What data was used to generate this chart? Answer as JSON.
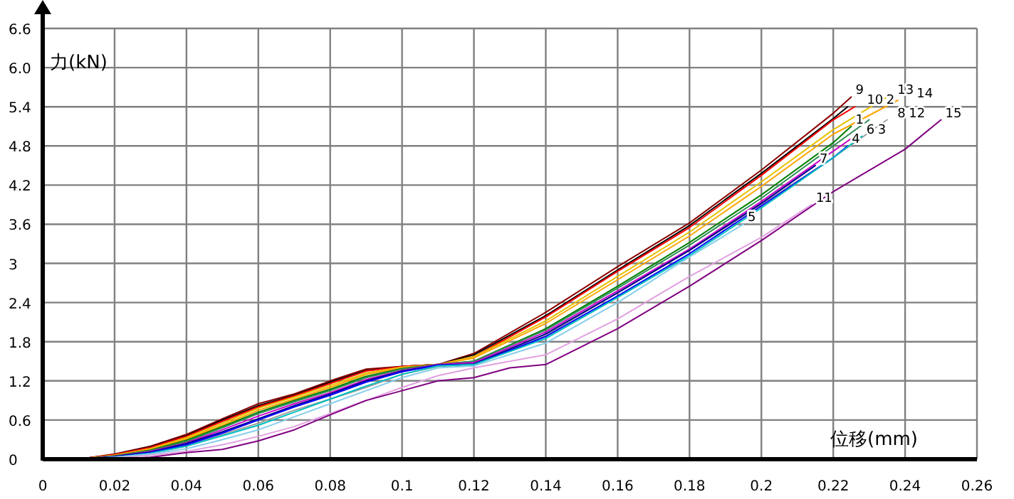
{
  "chart_data": {
    "type": "line",
    "xlabel": "位移(mm)",
    "ylabel": "力(kN)",
    "xlim": [
      0,
      0.26
    ],
    "ylim": [
      0,
      6.6
    ],
    "xticks": [
      0,
      0.02,
      0.04,
      0.06,
      0.08,
      0.1,
      0.12,
      0.14,
      0.16,
      0.18,
      0.2,
      0.22,
      0.24,
      0.26
    ],
    "yticks": [
      0,
      0.6,
      1.2,
      1.8,
      2.4,
      3,
      3.6,
      4.2,
      4.8,
      5.4,
      {
        "value": 6,
        "label": "6.0"
      },
      6.6
    ],
    "grid": true,
    "legend": false,
    "marker": "none",
    "line_style": "solid",
    "series": [
      {
        "name": "9",
        "color": "#8b0000",
        "x": [
          0.01,
          0.02,
          0.03,
          0.04,
          0.05,
          0.06,
          0.07,
          0.08,
          0.09,
          0.1,
          0.11,
          0.12,
          0.14,
          0.16,
          0.18,
          0.2,
          0.22,
          0.225
        ],
        "values": [
          0,
          0.08,
          0.2,
          0.38,
          0.62,
          0.85,
          1.0,
          1.2,
          1.38,
          1.42,
          1.45,
          1.62,
          2.25,
          2.95,
          3.62,
          4.43,
          5.3,
          5.55
        ]
      },
      {
        "name": "10",
        "color": "#000000",
        "x": [
          0.01,
          0.02,
          0.03,
          0.04,
          0.05,
          0.06,
          0.07,
          0.08,
          0.09,
          0.1,
          0.11,
          0.12,
          0.14,
          0.16,
          0.18,
          0.2,
          0.22,
          0.224
        ],
        "values": [
          0,
          0.07,
          0.19,
          0.36,
          0.6,
          0.82,
          0.98,
          1.18,
          1.36,
          1.42,
          1.45,
          1.6,
          2.2,
          2.9,
          3.58,
          4.38,
          5.22,
          5.4
        ]
      },
      {
        "name": "2",
        "color": "#ff0000",
        "x": [
          0.01,
          0.02,
          0.03,
          0.04,
          0.05,
          0.06,
          0.07,
          0.08,
          0.09,
          0.1,
          0.11,
          0.12,
          0.14,
          0.16,
          0.18,
          0.2,
          0.22,
          0.226
        ],
        "values": [
          0,
          0.07,
          0.18,
          0.35,
          0.58,
          0.8,
          0.97,
          1.16,
          1.35,
          1.42,
          1.45,
          1.57,
          2.18,
          2.88,
          3.55,
          4.35,
          5.2,
          5.4
        ]
      },
      {
        "name": "13",
        "color": "#e6c200",
        "x": [
          0.01,
          0.02,
          0.03,
          0.04,
          0.05,
          0.06,
          0.07,
          0.08,
          0.09,
          0.1,
          0.11,
          0.12,
          0.14,
          0.16,
          0.18,
          0.2,
          0.22,
          0.235
        ],
        "values": [
          0,
          0.06,
          0.16,
          0.33,
          0.55,
          0.78,
          0.95,
          1.13,
          1.32,
          1.41,
          1.45,
          1.57,
          2.12,
          2.8,
          3.48,
          4.25,
          5.05,
          5.55
        ]
      },
      {
        "name": "14",
        "color": "#ffa500",
        "x": [
          0.01,
          0.02,
          0.03,
          0.04,
          0.05,
          0.06,
          0.07,
          0.08,
          0.09,
          0.1,
          0.11,
          0.12,
          0.14,
          0.16,
          0.18,
          0.2,
          0.22,
          0.238
        ],
        "values": [
          0,
          0.06,
          0.15,
          0.31,
          0.52,
          0.75,
          0.92,
          1.1,
          1.3,
          1.4,
          1.45,
          1.55,
          2.08,
          2.75,
          3.42,
          4.18,
          4.98,
          5.5
        ]
      },
      {
        "name": "1",
        "color": "#008000",
        "x": [
          0.01,
          0.02,
          0.03,
          0.04,
          0.05,
          0.06,
          0.07,
          0.08,
          0.09,
          0.1,
          0.11,
          0.12,
          0.14,
          0.16,
          0.18,
          0.2,
          0.22,
          0.225
        ],
        "values": [
          0,
          0.05,
          0.14,
          0.29,
          0.5,
          0.72,
          0.9,
          1.07,
          1.27,
          1.39,
          1.45,
          1.5,
          2.0,
          2.65,
          3.32,
          4.05,
          4.85,
          5.1
        ]
      },
      {
        "name": "8",
        "color": "#2e8b57",
        "x": [
          0.01,
          0.02,
          0.03,
          0.04,
          0.05,
          0.06,
          0.07,
          0.08,
          0.09,
          0.1,
          0.11,
          0.12,
          0.14,
          0.16,
          0.18,
          0.2,
          0.22,
          0.23
        ],
        "values": [
          0,
          0.05,
          0.13,
          0.27,
          0.48,
          0.7,
          0.88,
          1.05,
          1.25,
          1.38,
          1.45,
          1.5,
          1.98,
          2.62,
          3.28,
          4.0,
          4.8,
          5.2
        ]
      },
      {
        "name": "12",
        "color": "#a0a0a0",
        "x": [
          0.01,
          0.02,
          0.03,
          0.04,
          0.05,
          0.06,
          0.07,
          0.08,
          0.09,
          0.1,
          0.11,
          0.12,
          0.14,
          0.16,
          0.18,
          0.2,
          0.22,
          0.235
        ],
        "values": [
          0,
          0.04,
          0.1,
          0.2,
          0.38,
          0.55,
          0.75,
          0.92,
          1.1,
          1.3,
          1.42,
          1.45,
          1.9,
          2.55,
          3.2,
          3.9,
          4.62,
          5.2
        ]
      },
      {
        "name": "6",
        "color": "#cc00cc",
        "x": [
          0.01,
          0.02,
          0.03,
          0.04,
          0.05,
          0.06,
          0.07,
          0.08,
          0.09,
          0.1,
          0.11,
          0.12,
          0.14,
          0.16,
          0.18,
          0.2,
          0.22,
          0.226
        ],
        "values": [
          0,
          0.04,
          0.12,
          0.25,
          0.45,
          0.66,
          0.85,
          1.02,
          1.22,
          1.36,
          1.45,
          1.48,
          1.95,
          2.58,
          3.22,
          3.95,
          4.72,
          4.95
        ]
      },
      {
        "name": "7",
        "color": "#00008b",
        "x": [
          0.01,
          0.02,
          0.03,
          0.04,
          0.05,
          0.06,
          0.07,
          0.08,
          0.09,
          0.1,
          0.11,
          0.12,
          0.14,
          0.16,
          0.18,
          0.2,
          0.215
        ],
        "values": [
          0,
          0.04,
          0.11,
          0.24,
          0.42,
          0.62,
          0.82,
          1.0,
          1.2,
          1.35,
          1.44,
          1.46,
          1.92,
          2.55,
          3.2,
          3.92,
          4.5
        ]
      },
      {
        "name": "4",
        "color": "#0000ff",
        "x": [
          0.01,
          0.02,
          0.03,
          0.04,
          0.05,
          0.06,
          0.07,
          0.08,
          0.09,
          0.1,
          0.11,
          0.12,
          0.14,
          0.16,
          0.18,
          0.2,
          0.22,
          0.224
        ],
        "values": [
          0,
          0.03,
          0.1,
          0.22,
          0.4,
          0.6,
          0.8,
          0.98,
          1.18,
          1.34,
          1.44,
          1.45,
          1.88,
          2.5,
          3.15,
          3.88,
          4.62,
          4.8
        ]
      },
      {
        "name": "3",
        "color": "#00bfbf",
        "x": [
          0.01,
          0.02,
          0.03,
          0.04,
          0.05,
          0.06,
          0.07,
          0.08,
          0.09,
          0.1,
          0.11,
          0.12,
          0.14,
          0.16,
          0.18,
          0.2,
          0.22,
          0.228
        ],
        "values": [
          0,
          0.03,
          0.09,
          0.2,
          0.36,
          0.52,
          0.72,
          0.92,
          1.12,
          1.3,
          1.43,
          1.45,
          1.85,
          2.48,
          3.12,
          3.85,
          4.62,
          4.95
        ]
      },
      {
        "name": "5",
        "color": "#87ceeb",
        "x": [
          0.01,
          0.02,
          0.03,
          0.04,
          0.05,
          0.06,
          0.07,
          0.08,
          0.09,
          0.1,
          0.11,
          0.12,
          0.14,
          0.16,
          0.18,
          0.195
        ],
        "values": [
          0,
          0.03,
          0.08,
          0.16,
          0.3,
          0.45,
          0.65,
          0.85,
          1.05,
          1.25,
          1.4,
          1.43,
          1.78,
          2.4,
          3.1,
          3.6
        ]
      },
      {
        "name": "11",
        "color": "#e0a0e0",
        "x": [
          0.01,
          0.02,
          0.03,
          0.04,
          0.05,
          0.06,
          0.07,
          0.08,
          0.09,
          0.1,
          0.11,
          0.12,
          0.14,
          0.16,
          0.18,
          0.2,
          0.214
        ],
        "values": [
          0,
          0.02,
          0.06,
          0.12,
          0.22,
          0.35,
          0.5,
          0.7,
          0.9,
          1.1,
          1.28,
          1.4,
          1.6,
          2.15,
          2.8,
          3.4,
          3.9
        ]
      },
      {
        "name": "15",
        "color": "#800080",
        "x": [
          0.02,
          0.03,
          0.04,
          0.05,
          0.06,
          0.07,
          0.08,
          0.09,
          0.1,
          0.11,
          0.12,
          0.13,
          0.14,
          0.16,
          0.18,
          0.2,
          0.22,
          0.24,
          0.25
        ],
        "values": [
          0,
          0.03,
          0.1,
          0.15,
          0.28,
          0.45,
          0.68,
          0.9,
          1.05,
          1.2,
          1.25,
          1.4,
          1.45,
          2.0,
          2.65,
          3.35,
          4.1,
          4.75,
          5.2
        ]
      }
    ]
  }
}
